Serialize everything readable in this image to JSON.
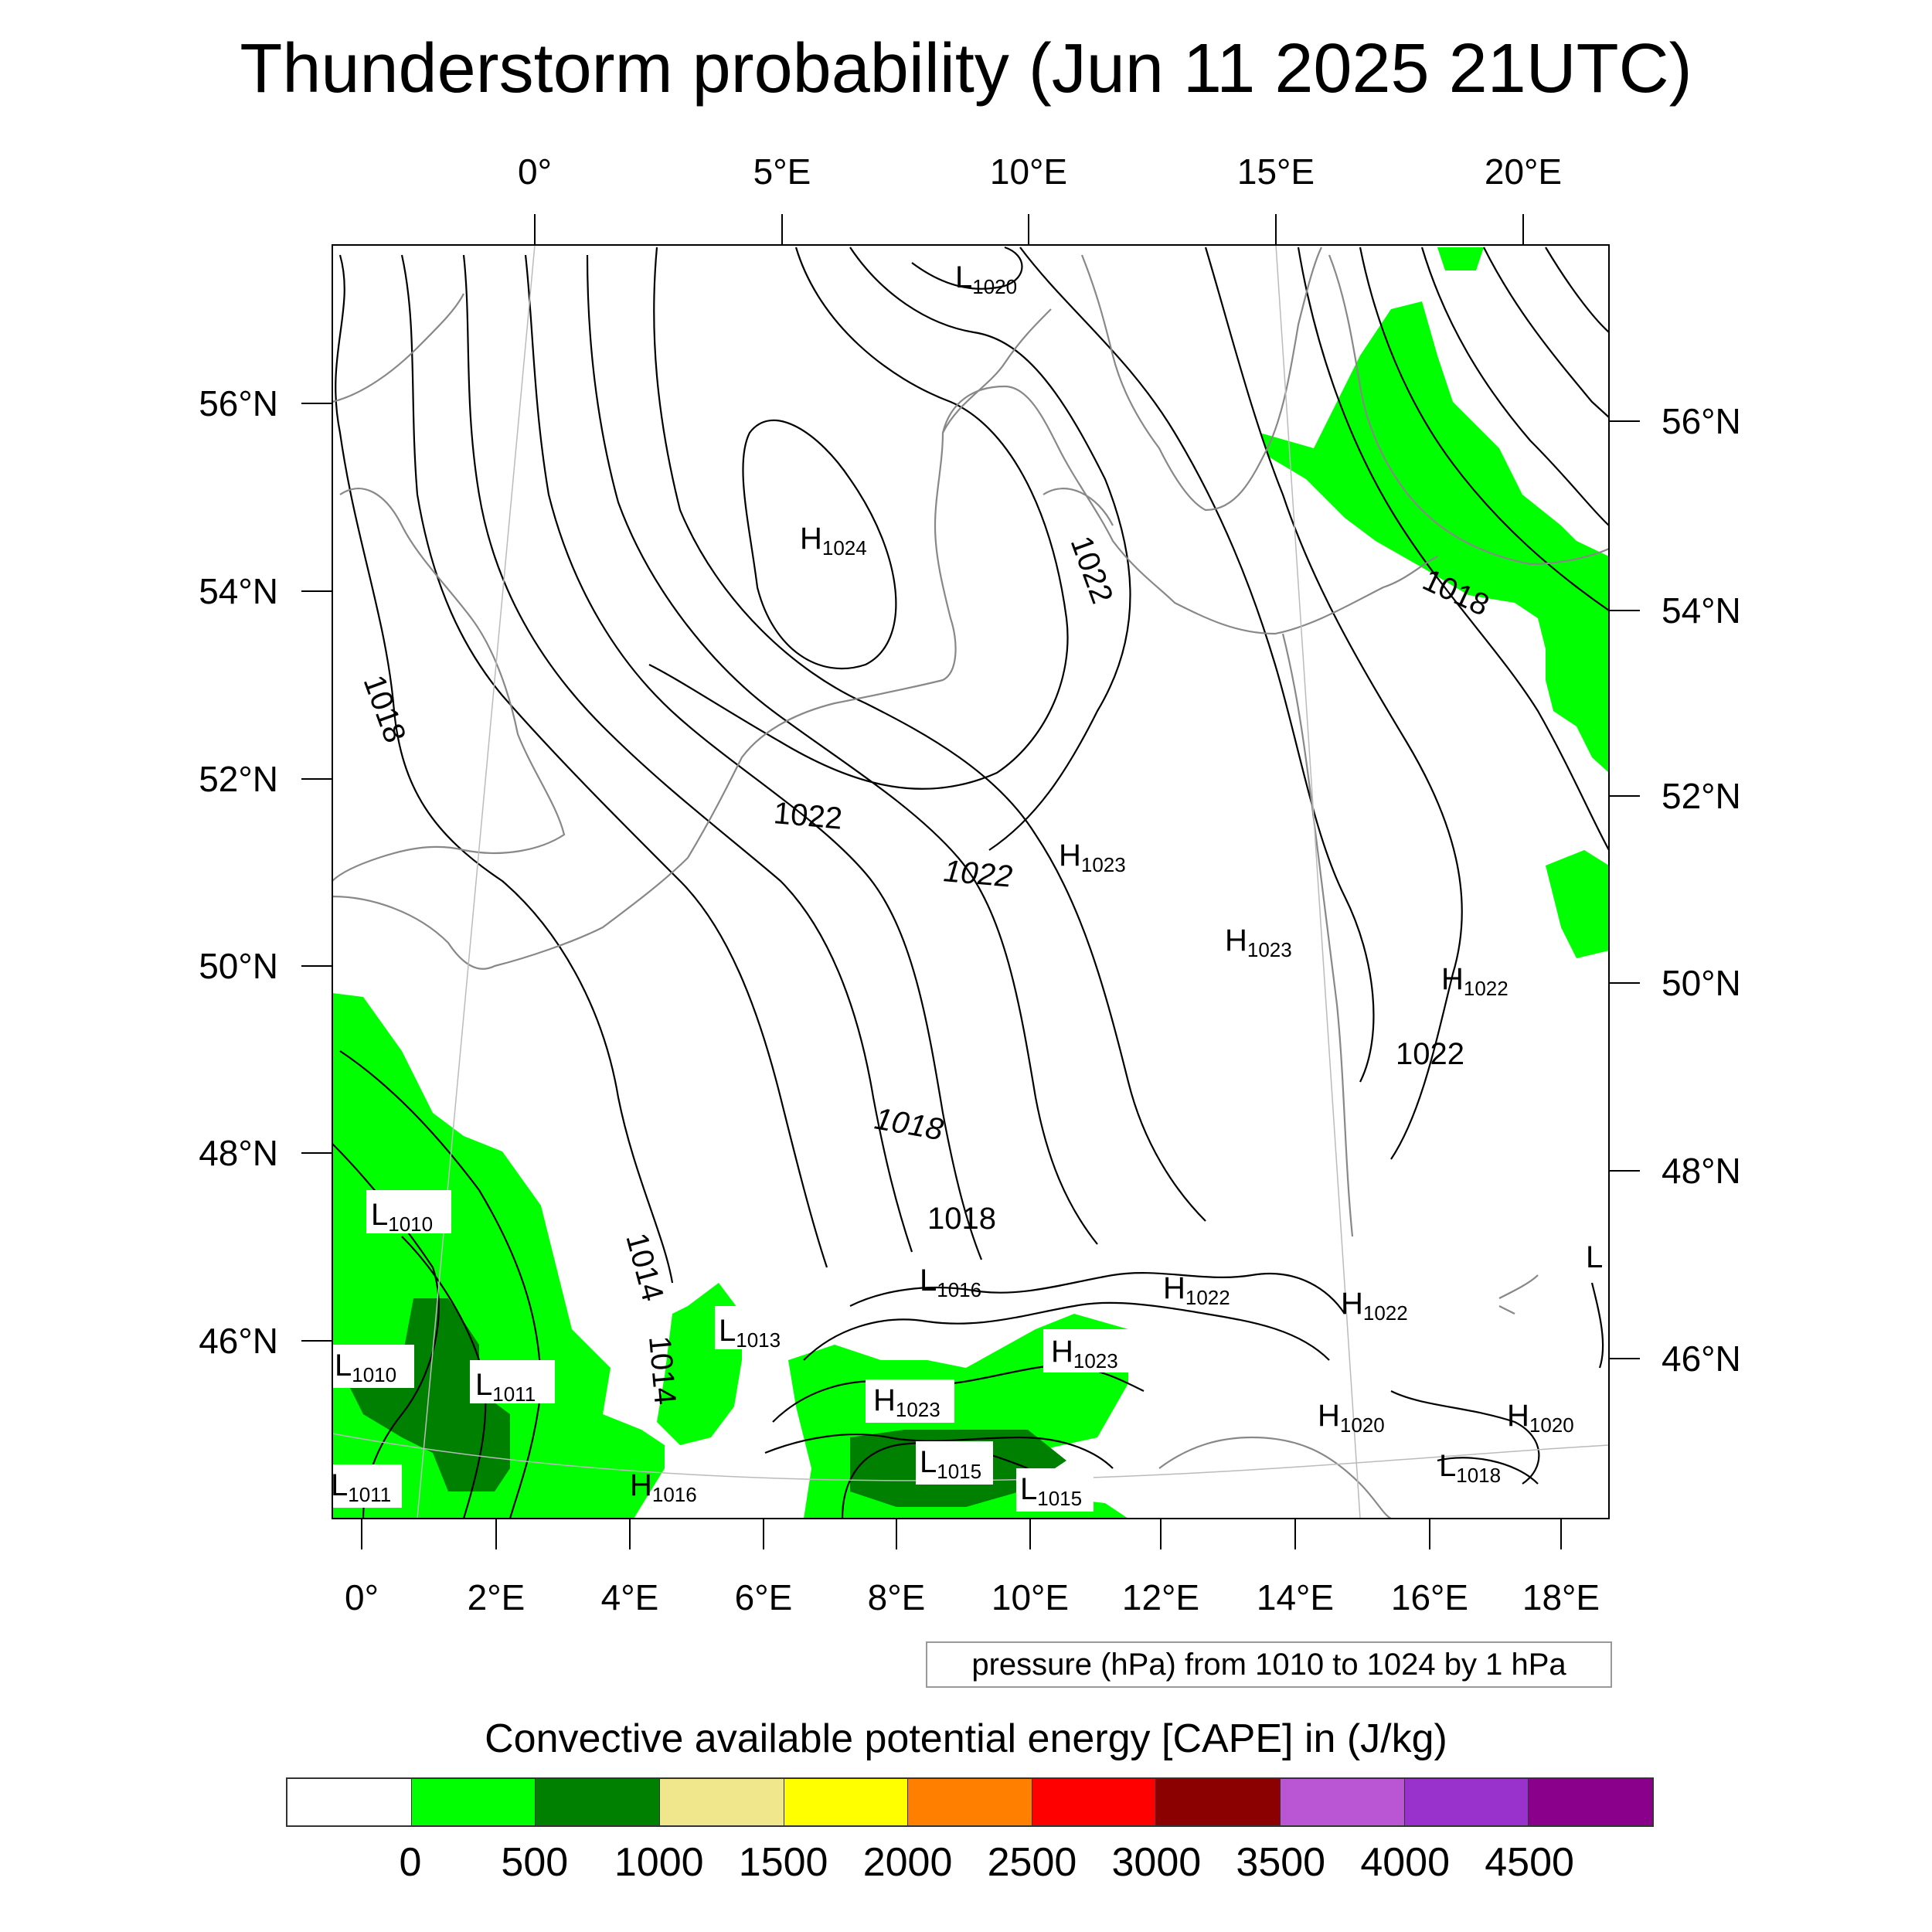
{
  "title": "Thunderstorm probability (Jun 11 2025 21UTC)",
  "axes": {
    "top_lon_ticks": [
      "0°",
      "5°E",
      "10°E",
      "15°E",
      "20°E"
    ],
    "bottom_lon_ticks": [
      "0°",
      "2°E",
      "4°E",
      "6°E",
      "8°E",
      "10°E",
      "12°E",
      "14°E",
      "16°E",
      "18°E"
    ],
    "left_lat_ticks": [
      "56°N",
      "54°N",
      "52°N",
      "50°N",
      "48°N",
      "46°N"
    ],
    "right_lat_ticks": [
      "56°N",
      "54°N",
      "52°N",
      "50°N",
      "48°N",
      "46°N"
    ]
  },
  "contour_labels": [
    "1018",
    "1022",
    "1022",
    "1022",
    "1018",
    "1018",
    "1014",
    "1014",
    "1022",
    "1018"
  ],
  "pressure_centers": [
    {
      "type": "L",
      "value": "1020"
    },
    {
      "type": "H",
      "value": "1024"
    },
    {
      "type": "H",
      "value": "1023"
    },
    {
      "type": "H",
      "value": "1023"
    },
    {
      "type": "H",
      "value": "1022"
    },
    {
      "type": "L",
      "value": "1010"
    },
    {
      "type": "L",
      "value": "1010"
    },
    {
      "type": "L",
      "value": "1011"
    },
    {
      "type": "L",
      "value": "1011"
    },
    {
      "type": "L",
      "value": "1013"
    },
    {
      "type": "L",
      "value": "1016"
    },
    {
      "type": "H",
      "value": "1022"
    },
    {
      "type": "H",
      "value": "1022"
    },
    {
      "type": "H",
      "value": "1023"
    },
    {
      "type": "H",
      "value": "1023"
    },
    {
      "type": "H",
      "value": "1016"
    },
    {
      "type": "L",
      "value": "1015"
    },
    {
      "type": "L",
      "value": "1015"
    },
    {
      "type": "H",
      "value": "1020"
    },
    {
      "type": "H",
      "value": "1020"
    },
    {
      "type": "L",
      "value": "1018"
    },
    {
      "type": "L",
      "value": ""
    }
  ],
  "contour_info": "pressure (hPa) from 1010 to 1024 by 1 hPa",
  "colorbar": {
    "title": "Convective available potential energy [CAPE] in (J/kg)",
    "colors": [
      "#ffffff",
      "#00ff00",
      "#008000",
      "#f0e68c",
      "#ffff00",
      "#ff8000",
      "#ff0000",
      "#8b0000",
      "#ba55d3",
      "#9932cc",
      "#8b008b"
    ],
    "labels": [
      "0",
      "500",
      "1000",
      "1500",
      "2000",
      "2500",
      "3000",
      "3500",
      "4000",
      "4500"
    ]
  }
}
